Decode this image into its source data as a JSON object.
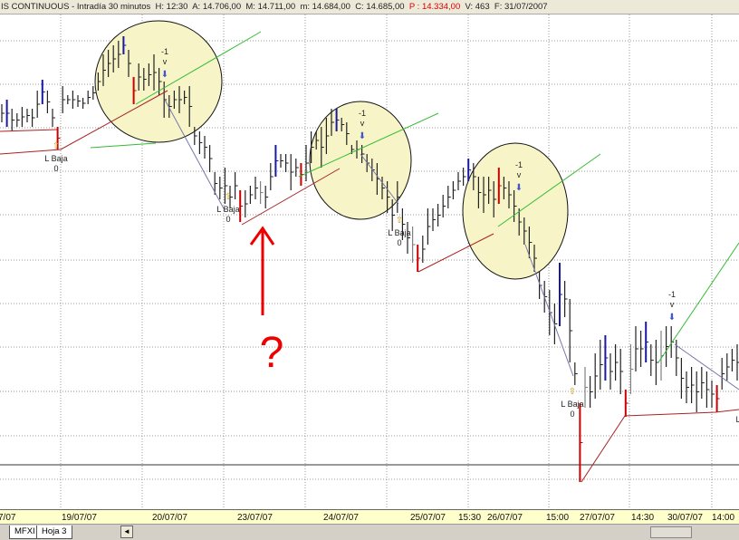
{
  "header": {
    "title": "IS CONTINUOUS - Intradía 30 minutos",
    "h": "H: 12:30",
    "a": "A: 14.706,00",
    "m_high": "M: 14.711,00",
    "m_low": "m: 14.684,00",
    "c": "C: 14.685,00",
    "p": "P : 14.334,00",
    "v": "V: 463",
    "f": "F: 31/07/2007"
  },
  "chart_data": {
    "type": "ohlc-bar",
    "interval": "30 minutos",
    "grid": true,
    "colors": {
      "k": "#222222",
      "g": "#808080",
      "b": "#1a1aa0",
      "r": "#cc0000"
    },
    "bars": [
      [
        14885,
        14865,
        "k"
      ],
      [
        14890,
        14860,
        "b"
      ],
      [
        14880,
        14855,
        "k"
      ],
      [
        14875,
        14860,
        "k"
      ],
      [
        14882,
        14860,
        "k"
      ],
      [
        14880,
        14865,
        "k"
      ],
      [
        14880,
        14860,
        "k"
      ],
      [
        14900,
        14870,
        "k"
      ],
      [
        14912,
        14885,
        "b"
      ],
      [
        14900,
        14875,
        "k"
      ],
      [
        14880,
        14860,
        "k"
      ],
      [
        14860,
        14835,
        "r"
      ],
      [
        14905,
        14875,
        "k"
      ],
      [
        14895,
        14885,
        "k"
      ],
      [
        14900,
        14880,
        "k"
      ],
      [
        14895,
        14882,
        "k"
      ],
      [
        14892,
        14880,
        "k"
      ],
      [
        14900,
        14885,
        "k"
      ],
      [
        14905,
        14890,
        "k"
      ],
      [
        14920,
        14900,
        "k"
      ],
      [
        14940,
        14905,
        "k"
      ],
      [
        14945,
        14915,
        "k"
      ],
      [
        14950,
        14920,
        "k"
      ],
      [
        14955,
        14925,
        "k"
      ],
      [
        14960,
        14940,
        "b"
      ],
      [
        14945,
        14915,
        "k"
      ],
      [
        14915,
        14885,
        "r"
      ],
      [
        14930,
        14900,
        "k"
      ],
      [
        14925,
        14900,
        "k"
      ],
      [
        14930,
        14905,
        "k"
      ],
      [
        14940,
        14900,
        "k"
      ],
      [
        14925,
        14895,
        "k"
      ],
      [
        14910,
        14870,
        "k"
      ],
      [
        14895,
        14870,
        "k"
      ],
      [
        14900,
        14880,
        "k"
      ],
      [
        14905,
        14875,
        "k"
      ],
      [
        14900,
        14885,
        "k"
      ],
      [
        14905,
        14860,
        "k"
      ],
      [
        14860,
        14840,
        "k"
      ],
      [
        14855,
        14830,
        "k"
      ],
      [
        14850,
        14825,
        "k"
      ],
      [
        14840,
        14810,
        "k"
      ],
      [
        14810,
        14785,
        "k"
      ],
      [
        14805,
        14780,
        "k"
      ],
      [
        14815,
        14775,
        "k"
      ],
      [
        14795,
        14770,
        "k"
      ],
      [
        14810,
        14780,
        "k"
      ],
      [
        14790,
        14755,
        "r"
      ],
      [
        14790,
        14760,
        "k"
      ],
      [
        14795,
        14775,
        "k"
      ],
      [
        14805,
        14780,
        "k"
      ],
      [
        14800,
        14775,
        "g"
      ],
      [
        14795,
        14770,
        "k"
      ],
      [
        14820,
        14790,
        "k"
      ],
      [
        14840,
        14805,
        "b"
      ],
      [
        14830,
        14815,
        "k"
      ],
      [
        14830,
        14810,
        "k"
      ],
      [
        14830,
        14790,
        "k"
      ],
      [
        14825,
        14805,
        "k"
      ],
      [
        14820,
        14795,
        "r"
      ],
      [
        14840,
        14800,
        "k"
      ],
      [
        14855,
        14820,
        "k"
      ],
      [
        14855,
        14835,
        "k"
      ],
      [
        14860,
        14815,
        "k"
      ],
      [
        14870,
        14830,
        "k"
      ],
      [
        14880,
        14850,
        "k"
      ],
      [
        14880,
        14855,
        "b"
      ],
      [
        14870,
        14855,
        "k"
      ],
      [
        14865,
        14840,
        "k"
      ],
      [
        14840,
        14830,
        "k"
      ],
      [
        14845,
        14825,
        "k"
      ],
      [
        14840,
        14820,
        "k"
      ],
      [
        14830,
        14810,
        "k"
      ],
      [
        14825,
        14800,
        "k"
      ],
      [
        14820,
        14785,
        "k"
      ],
      [
        14805,
        14780,
        "k"
      ],
      [
        14800,
        14765,
        "k"
      ],
      [
        14780,
        14745,
        "k"
      ],
      [
        14800,
        14765,
        "k"
      ],
      [
        14770,
        14735,
        "k"
      ],
      [
        14755,
        14720,
        "k"
      ],
      [
        14750,
        14710,
        "g"
      ],
      [
        14730,
        14700,
        "r"
      ],
      [
        14740,
        14710,
        "k"
      ],
      [
        14770,
        14730,
        "k"
      ],
      [
        14770,
        14745,
        "k"
      ],
      [
        14775,
        14750,
        "k"
      ],
      [
        14785,
        14760,
        "k"
      ],
      [
        14795,
        14770,
        "k"
      ],
      [
        14800,
        14780,
        "k"
      ],
      [
        14810,
        14790,
        "k"
      ],
      [
        14815,
        14795,
        "k"
      ],
      [
        14825,
        14800,
        "b"
      ],
      [
        14820,
        14790,
        "k"
      ],
      [
        14805,
        14770,
        "k"
      ],
      [
        14805,
        14765,
        "k"
      ],
      [
        14805,
        14775,
        "k"
      ],
      [
        14800,
        14760,
        "k"
      ],
      [
        14815,
        14775,
        "r"
      ],
      [
        14805,
        14780,
        "k"
      ],
      [
        14800,
        14770,
        "k"
      ],
      [
        14790,
        14755,
        "k"
      ],
      [
        14770,
        14740,
        "k"
      ],
      [
        14760,
        14730,
        "k"
      ],
      [
        14750,
        14715,
        "k"
      ],
      [
        14730,
        14700,
        "k"
      ],
      [
        14700,
        14670,
        "k"
      ],
      [
        14690,
        14655,
        "k"
      ],
      [
        14680,
        14630,
        "k"
      ],
      [
        14665,
        14620,
        "k"
      ],
      [
        14710,
        14640,
        "b"
      ],
      [
        14690,
        14650,
        "k"
      ],
      [
        14670,
        14600,
        "k"
      ],
      [
        14600,
        14575,
        "k"
      ],
      [
        14555,
        14468,
        "r"
      ],
      [
        14595,
        14550,
        "g"
      ],
      [
        14585,
        14550,
        "k"
      ],
      [
        14610,
        14560,
        "k"
      ],
      [
        14625,
        14570,
        "k"
      ],
      [
        14630,
        14580,
        "b"
      ],
      [
        14610,
        14570,
        "k"
      ],
      [
        14620,
        14580,
        "k"
      ],
      [
        14615,
        14565,
        "k"
      ],
      [
        14570,
        14540,
        "r"
      ],
      [
        14620,
        14565,
        "g"
      ],
      [
        14640,
        14590,
        "k"
      ],
      [
        14635,
        14595,
        "k"
      ],
      [
        14645,
        14600,
        "b"
      ],
      [
        14620,
        14585,
        "k"
      ],
      [
        14625,
        14575,
        "k"
      ],
      [
        14635,
        14580,
        "g"
      ],
      [
        14640,
        14595,
        "k"
      ],
      [
        14640,
        14605,
        "k"
      ],
      [
        14625,
        14585,
        "k"
      ],
      [
        14605,
        14560,
        "k"
      ],
      [
        14590,
        14555,
        "k"
      ],
      [
        14595,
        14555,
        "k"
      ],
      [
        14590,
        14545,
        "k"
      ],
      [
        14595,
        14560,
        "k"
      ],
      [
        14590,
        14550,
        "k"
      ],
      [
        14580,
        14550,
        "k"
      ],
      [
        14575,
        14545,
        "r"
      ],
      [
        14605,
        14570,
        "k"
      ],
      [
        14610,
        14580,
        "k"
      ],
      [
        14615,
        14590,
        "k"
      ],
      [
        14620,
        14580,
        "k"
      ]
    ],
    "annotations": {
      "low_label": "L Baja",
      "low_value": "0",
      "signal_value": "-1",
      "signal_mark": "v",
      "question": "?"
    },
    "x_ticks": [
      "7/07",
      "19/07/07",
      "20/07/07",
      "23/07/07",
      "24/07/07",
      "25/07/07",
      "15:30",
      "26/07/07",
      "15:00",
      "27/07/07",
      "14:30",
      "30/07/07",
      "14:00"
    ]
  },
  "tabs": [
    "MFXI",
    "Hoja 3"
  ],
  "scroll_left": "◄"
}
